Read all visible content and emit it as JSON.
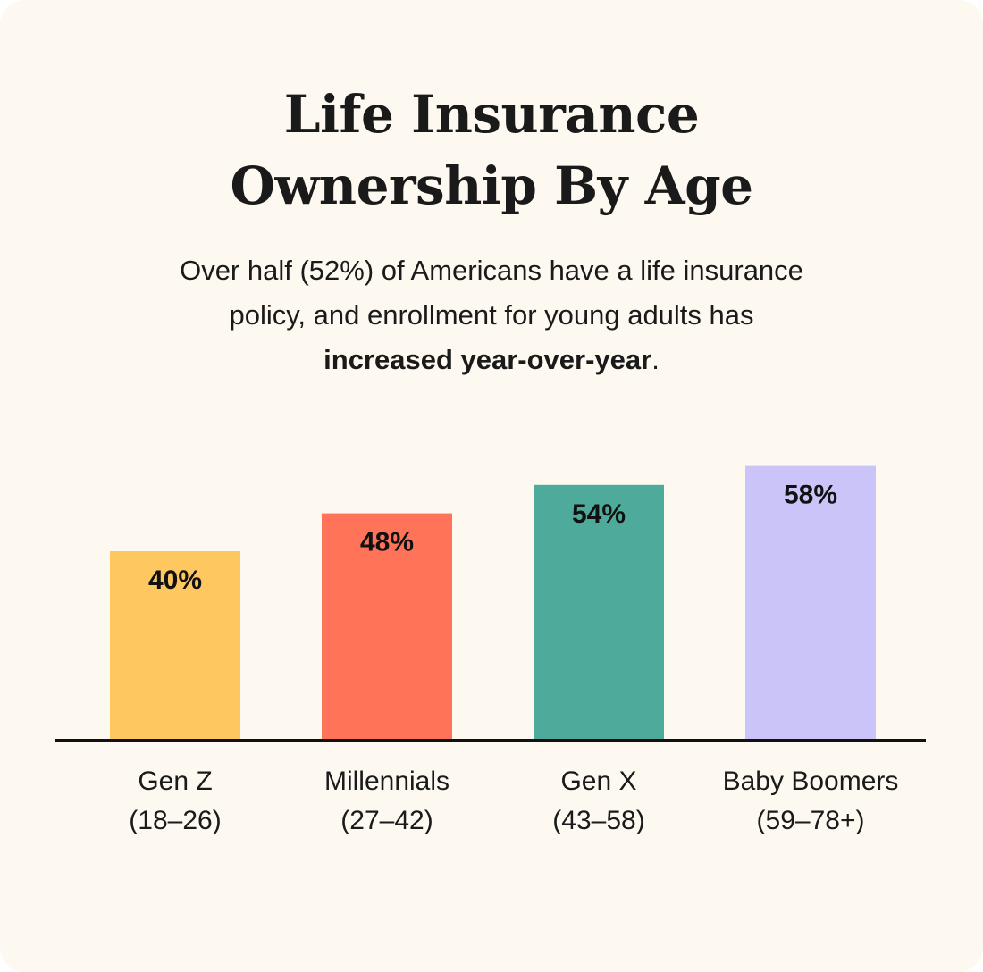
{
  "title_line1": "Life Insurance",
  "title_line2": "Ownership By Age",
  "subtitle": {
    "line1": "Over half (52%) of Americans have a life insurance",
    "line2": "policy, and enrollment for young adults has",
    "line3_bold": "increased year-over-year",
    "line3_tail": "."
  },
  "chart_data": {
    "type": "bar",
    "categories": [
      "Gen Z",
      "Millennials",
      "Gen X",
      "Baby Boomers"
    ],
    "category_ranges": [
      "(18–26)",
      "(27–42)",
      "(43–58)",
      "(59–78+)"
    ],
    "values": [
      40,
      48,
      54,
      58
    ],
    "value_labels": [
      "40%",
      "48%",
      "54%",
      "58%"
    ],
    "colors": [
      "#fec760",
      "#ff7459",
      "#4eab9b",
      "#cbc4f8"
    ],
    "title": "Life Insurance Ownership By Age",
    "xlabel": "",
    "ylabel": "",
    "ylim": [
      0,
      100
    ],
    "grid": false,
    "legend": "none"
  },
  "colors": {
    "background": "#fdf8f0",
    "text": "#1a1a1a",
    "baseline": "#111111"
  }
}
